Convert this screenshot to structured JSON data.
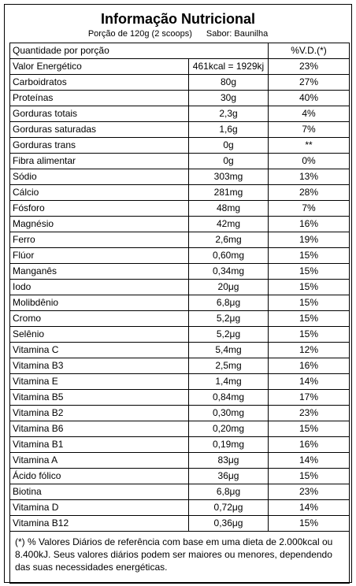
{
  "header": {
    "title": "Informação Nutricional",
    "serving": "Porção de 120g (2 scoops)",
    "flavor": "Sabor: Baunilha"
  },
  "table": {
    "columns": [
      "Quantidade por porção",
      "%V.D.(*)"
    ],
    "rows": [
      [
        "Valor Energético",
        "461kcal = 1929kj",
        "23%"
      ],
      [
        "Carboidratos",
        "80g",
        "27%"
      ],
      [
        "Proteínas",
        "30g",
        "40%"
      ],
      [
        "Gorduras totais",
        "2,3g",
        "4%"
      ],
      [
        "Gorduras saturadas",
        "1,6g",
        "7%"
      ],
      [
        "Gorduras trans",
        "0g",
        "**"
      ],
      [
        "Fibra alimentar",
        "0g",
        "0%"
      ],
      [
        "Sódio",
        "303mg",
        "13%"
      ],
      [
        "Cálcio",
        "281mg",
        "28%"
      ],
      [
        "Fósforo",
        "48mg",
        "7%"
      ],
      [
        "Magnésio",
        "42mg",
        "16%"
      ],
      [
        "Ferro",
        "2,6mg",
        "19%"
      ],
      [
        "Flúor",
        "0,60mg",
        "15%"
      ],
      [
        "Manganês",
        "0,34mg",
        "15%"
      ],
      [
        "Iodo",
        "20μg",
        "15%"
      ],
      [
        "Molibdênio",
        "6,8μg",
        "15%"
      ],
      [
        "Cromo",
        "5,2μg",
        "15%"
      ],
      [
        "Selênio",
        "5,2μg",
        "15%"
      ],
      [
        "Vitamina C",
        "5,4mg",
        "12%"
      ],
      [
        "Vitamina B3",
        "2,5mg",
        "16%"
      ],
      [
        "Vitamina E",
        "1,4mg",
        "14%"
      ],
      [
        "Vitamina B5",
        "0,84mg",
        "17%"
      ],
      [
        "Vitamina B2",
        "0,30mg",
        "23%"
      ],
      [
        "Vitamina B6",
        "0,20mg",
        "15%"
      ],
      [
        "Vitamina B1",
        "0,19mg",
        "16%"
      ],
      [
        "Vitamina A",
        "83μg",
        "14%"
      ],
      [
        "Ácido fólico",
        "36μg",
        "15%"
      ],
      [
        "Biotina",
        "6,8μg",
        "23%"
      ],
      [
        "Vitamina D",
        "0,72μg",
        "14%"
      ],
      [
        "Vitamina B12",
        "0,36μg",
        "15%"
      ]
    ]
  },
  "footer": "(*) % Valores Diários de referência com base em uma dieta de 2.000kcal ou 8.400kJ. Seus valores diários podem ser maiores ou menores, dependendo das suas necessidades energéticas."
}
